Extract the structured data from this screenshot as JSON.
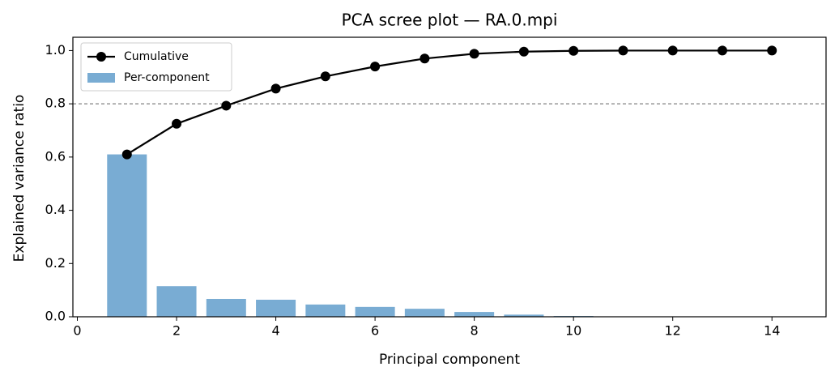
{
  "chart_data": {
    "type": "scree",
    "title": "PCA scree plot — RA.0.mpi",
    "x_label": "Principal component",
    "y_label": "Explained variance ratio",
    "x": [
      1,
      2,
      3,
      4,
      5,
      6,
      7,
      8,
      9,
      10,
      11,
      12,
      13,
      14
    ],
    "series": [
      {
        "name": "Cumulative",
        "kind": "line",
        "color": "#000000",
        "values": [
          0.61,
          0.725,
          0.793,
          0.857,
          0.903,
          0.94,
          0.97,
          0.988,
          0.996,
          0.999,
          1.0,
          1.0,
          1.0,
          1.0
        ]
      },
      {
        "name": "Per-component",
        "kind": "bar",
        "color": "#79acd3",
        "values": [
          0.61,
          0.115,
          0.067,
          0.064,
          0.046,
          0.037,
          0.03,
          0.018,
          0.008,
          0.003,
          0.001,
          0.0005,
          0.0002,
          0.0001
        ]
      }
    ],
    "threshold": 0.8,
    "xlim": [
      -0.09,
      15.09
    ],
    "ylim": [
      0,
      1.05
    ],
    "xticks": [
      0,
      2,
      4,
      6,
      8,
      10,
      12,
      14
    ],
    "yticks": [
      {
        "value": 0,
        "label": "0.0"
      },
      0.2,
      0.4,
      0.6,
      0.8,
      {
        "value": 1,
        "label": "1.0"
      }
    ],
    "legend": "upper left"
  }
}
